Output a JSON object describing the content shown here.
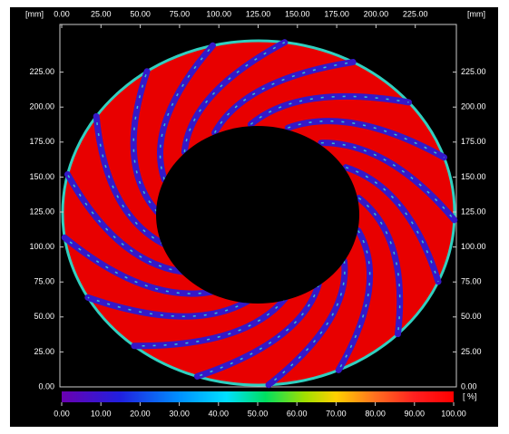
{
  "x_axis": {
    "unit_label": "[mm]",
    "lim": [
      0,
      250
    ],
    "ticks": [
      {
        "value": 0,
        "label": "0.00"
      },
      {
        "value": 25,
        "label": "25.00"
      },
      {
        "value": 50,
        "label": "50.00"
      },
      {
        "value": 75,
        "label": "75.00"
      },
      {
        "value": 100,
        "label": "100.00"
      },
      {
        "value": 125,
        "label": "125.00"
      },
      {
        "value": 150,
        "label": "150.00"
      },
      {
        "value": 175,
        "label": "175.00"
      },
      {
        "value": 200,
        "label": "200.00"
      },
      {
        "value": 225,
        "label": "225.00"
      }
    ]
  },
  "y_axis": {
    "unit_label": "[mm]",
    "lim": [
      0,
      250
    ],
    "ticks": [
      {
        "value": 0,
        "label": "0.00"
      },
      {
        "value": 25,
        "label": "25.00"
      },
      {
        "value": 50,
        "label": "50.00"
      },
      {
        "value": 75,
        "label": "75.00"
      },
      {
        "value": 100,
        "label": "100.00"
      },
      {
        "value": 125,
        "label": "125.00"
      },
      {
        "value": 150,
        "label": "150.00"
      },
      {
        "value": 175,
        "label": "175.00"
      },
      {
        "value": 200,
        "label": "200.00"
      },
      {
        "value": 225,
        "label": "225.00"
      }
    ]
  },
  "colorbar": {
    "unit_label": "[ %]",
    "lim": [
      0,
      100
    ],
    "ticks": [
      {
        "value": 0,
        "label": "0.00"
      },
      {
        "value": 10,
        "label": "10.00"
      },
      {
        "value": 20,
        "label": "20.00"
      },
      {
        "value": 30,
        "label": "30.00"
      },
      {
        "value": 40,
        "label": "40.00"
      },
      {
        "value": 50,
        "label": "50.00"
      },
      {
        "value": 60,
        "label": "60.00"
      },
      {
        "value": 70,
        "label": "70.00"
      },
      {
        "value": 80,
        "label": "80.00"
      },
      {
        "value": 90,
        "label": "90.00"
      },
      {
        "value": 100,
        "label": "100.00"
      }
    ]
  }
}
